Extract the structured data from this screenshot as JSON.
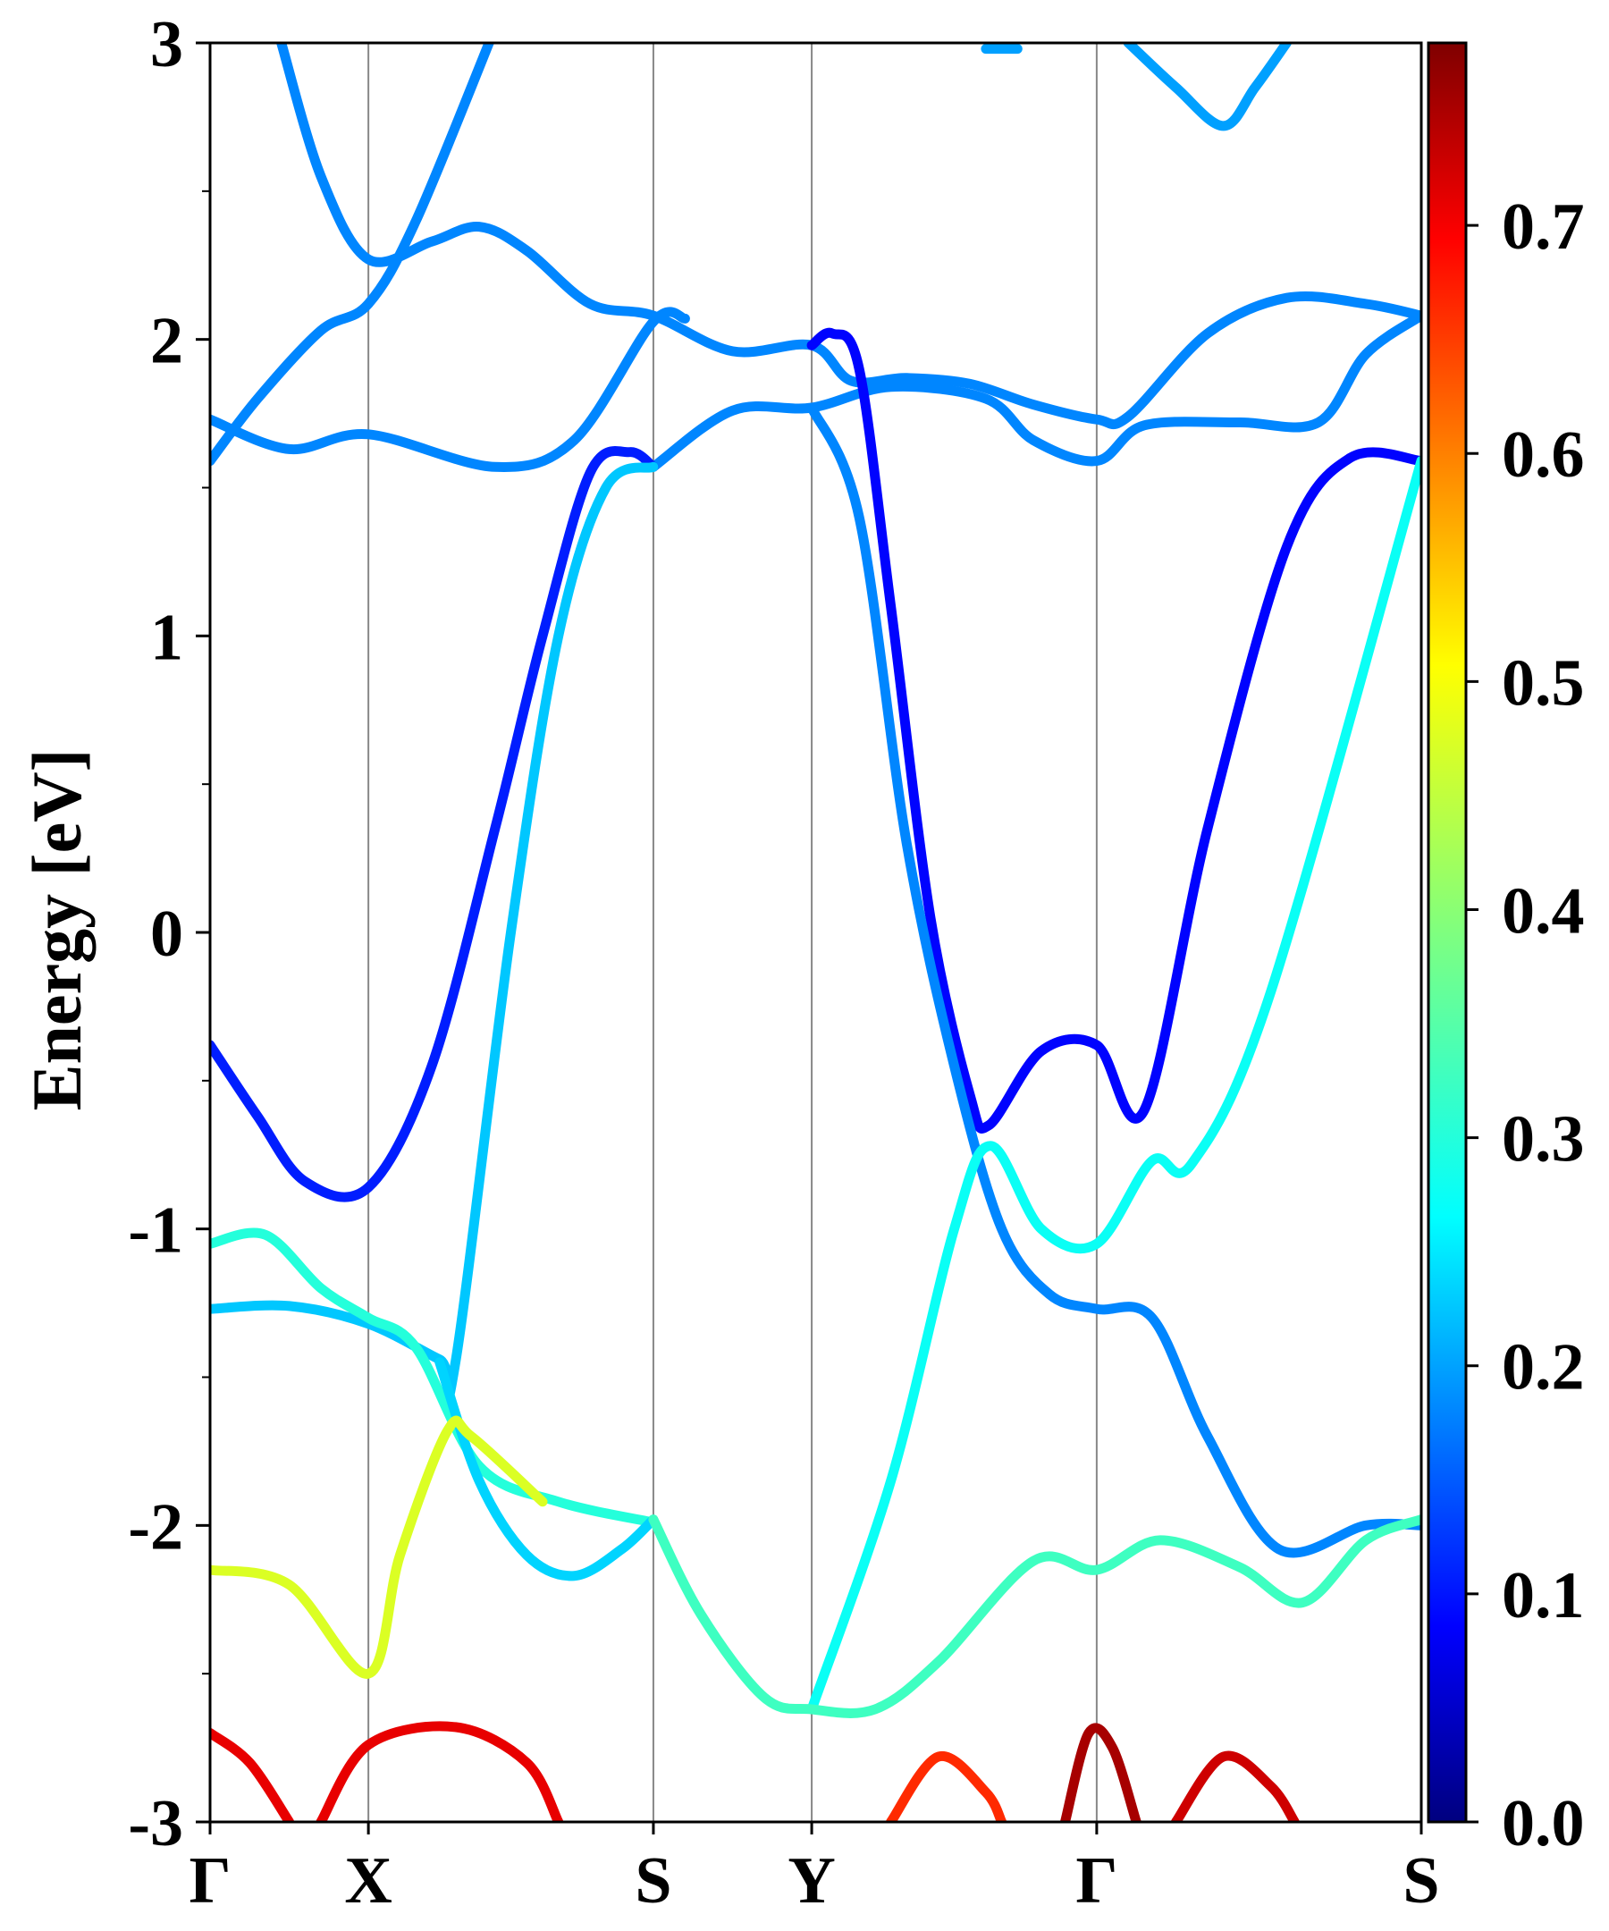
{
  "chart_data": {
    "type": "line",
    "ylabel": "Energy [eV]",
    "ylim": [
      -3,
      3
    ],
    "y_ticks": [
      "3",
      "2",
      "1",
      "0",
      "-1",
      "-2",
      "-3"
    ],
    "k_points": [
      {
        "label": "Γ",
        "x": 0.0
      },
      {
        "label": "X",
        "x": 1.0
      },
      {
        "label": "S",
        "x": 2.8
      },
      {
        "label": "Y",
        "x": 3.8
      },
      {
        "label": "Γ",
        "x": 5.6
      },
      {
        "label": "S",
        "x": 7.65
      }
    ],
    "xlim": [
      0,
      7.65
    ],
    "colorbar": {
      "colormap": "jet",
      "range": [
        0.0,
        0.78
      ],
      "tick_labels": [
        "0.0",
        "0.1",
        "0.2",
        "0.3",
        "0.4",
        "0.5",
        "0.6",
        "0.7"
      ]
    },
    "grid": "vertical lines at high-symmetry points",
    "series": [
      {
        "points": [
          [
            0.0,
            1.59
          ],
          [
            0.3,
            1.8
          ],
          [
            0.7,
            2.03
          ],
          [
            1.0,
            2.12
          ],
          [
            1.3,
            2.4
          ],
          [
            1.8,
            3.05
          ]
        ],
        "weight": 0.2
      },
      {
        "points": [
          [
            0.45,
            3.0
          ],
          [
            0.7,
            2.55
          ],
          [
            1.0,
            2.27
          ],
          [
            1.4,
            2.33
          ],
          [
            1.7,
            2.38
          ],
          [
            2.0,
            2.3
          ],
          [
            2.4,
            2.12
          ],
          [
            2.8,
            2.08
          ],
          [
            3.3,
            1.96
          ],
          [
            3.8,
            1.98
          ],
          [
            4.05,
            1.86
          ],
          [
            4.4,
            1.87
          ],
          [
            4.8,
            1.85
          ],
          [
            5.2,
            1.78
          ],
          [
            5.6,
            1.73
          ],
          [
            5.8,
            1.74
          ],
          [
            6.3,
            2.02
          ],
          [
            6.8,
            2.14
          ],
          [
            7.3,
            2.12
          ],
          [
            7.65,
            2.08
          ]
        ],
        "weight": 0.2
      },
      {
        "points": [
          [
            0.0,
            1.73
          ],
          [
            0.5,
            1.63
          ],
          [
            1.0,
            1.68
          ],
          [
            1.8,
            1.57
          ],
          [
            2.3,
            1.66
          ],
          [
            2.8,
            2.06
          ],
          [
            3.0,
            2.07
          ]
        ],
        "weight": 0.2
      },
      {
        "points": [
          [
            2.8,
            1.57
          ],
          [
            3.3,
            1.76
          ],
          [
            3.8,
            1.77
          ],
          [
            4.3,
            1.84
          ],
          [
            4.9,
            1.8
          ],
          [
            5.2,
            1.66
          ],
          [
            5.6,
            1.59
          ],
          [
            5.9,
            1.71
          ],
          [
            6.5,
            1.72
          ],
          [
            7.0,
            1.72
          ],
          [
            7.3,
            1.95
          ],
          [
            7.65,
            2.08
          ]
        ],
        "weight": 0.2
      },
      {
        "points": [
          [
            3.8,
            1.98
          ],
          [
            3.93,
            2.02
          ],
          [
            4.1,
            1.9
          ],
          [
            4.3,
            1.1
          ],
          [
            4.55,
            0.05
          ],
          [
            4.8,
            -0.55
          ],
          [
            4.92,
            -0.65
          ],
          [
            5.25,
            -0.4
          ],
          [
            5.6,
            -0.38
          ],
          [
            5.9,
            -0.6
          ],
          [
            6.3,
            0.35
          ],
          [
            6.8,
            1.3
          ],
          [
            7.2,
            1.6
          ],
          [
            7.65,
            1.59
          ]
        ],
        "weight": 0.1
      },
      {
        "points": [
          [
            0.0,
            -0.38
          ],
          [
            0.3,
            -0.62
          ],
          [
            0.6,
            -0.84
          ],
          [
            1.0,
            -0.86
          ],
          [
            1.4,
            -0.45
          ],
          [
            1.8,
            0.35
          ],
          [
            2.1,
            1.0
          ],
          [
            2.4,
            1.55
          ],
          [
            2.65,
            1.62
          ],
          [
            2.8,
            1.57
          ]
        ],
        "weight": 0.12
      },
      {
        "points": [
          [
            3.8,
            1.77
          ],
          [
            4.1,
            1.4
          ],
          [
            4.4,
            0.3
          ],
          [
            4.7,
            -0.45
          ],
          [
            5.0,
            -1.0
          ],
          [
            5.3,
            -1.22
          ],
          [
            5.6,
            -1.27
          ],
          [
            5.95,
            -1.3
          ],
          [
            6.3,
            -1.7
          ],
          [
            6.75,
            -2.08
          ],
          [
            7.3,
            -2.0
          ],
          [
            7.65,
            -2.0
          ]
        ],
        "weight": 0.2
      },
      {
        "points": [
          [
            0.0,
            -1.27
          ],
          [
            0.5,
            -1.26
          ],
          [
            1.0,
            -1.32
          ],
          [
            1.45,
            -1.44
          ],
          [
            1.55,
            -1.45
          ],
          [
            1.9,
            0.0
          ],
          [
            2.2,
            1.0
          ],
          [
            2.5,
            1.5
          ],
          [
            2.8,
            1.57
          ]
        ],
        "weight": 0.25
      },
      {
        "points": [
          [
            3.8,
            -2.62
          ],
          [
            4.3,
            -1.85
          ],
          [
            4.7,
            -1.0
          ],
          [
            4.93,
            -0.72
          ],
          [
            5.25,
            -1.0
          ],
          [
            5.6,
            -1.05
          ],
          [
            5.95,
            -0.77
          ],
          [
            6.2,
            -0.78
          ],
          [
            6.7,
            -0.2
          ],
          [
            7.65,
            1.59
          ]
        ],
        "weight": 0.3
      },
      {
        "points": [
          [
            0.0,
            -1.05
          ],
          [
            0.35,
            -1.02
          ],
          [
            0.7,
            -1.2
          ],
          [
            1.0,
            -1.3
          ],
          [
            1.3,
            -1.4
          ],
          [
            1.7,
            -1.8
          ],
          [
            2.2,
            -1.92
          ],
          [
            2.8,
            -1.99
          ]
        ],
        "weight": 0.32
      },
      {
        "points": [
          [
            1.45,
            -1.45
          ],
          [
            1.7,
            -1.85
          ],
          [
            2.0,
            -2.1
          ],
          [
            2.3,
            -2.17
          ],
          [
            2.6,
            -2.08
          ],
          [
            2.8,
            -1.98
          ]
        ],
        "weight": 0.26
      },
      {
        "points": [
          [
            2.8,
            -1.98
          ],
          [
            3.1,
            -2.3
          ],
          [
            3.5,
            -2.58
          ],
          [
            3.8,
            -2.62
          ],
          [
            4.2,
            -2.62
          ],
          [
            4.6,
            -2.46
          ],
          [
            5.2,
            -2.12
          ],
          [
            5.6,
            -2.15
          ],
          [
            6.0,
            -2.05
          ],
          [
            6.5,
            -2.14
          ],
          [
            6.9,
            -2.26
          ],
          [
            7.3,
            -2.05
          ],
          [
            7.65,
            -1.98
          ]
        ],
        "weight": 0.34
      },
      {
        "points": [
          [
            0.0,
            -2.15
          ],
          [
            0.5,
            -2.2
          ],
          [
            1.0,
            -2.5
          ],
          [
            1.2,
            -2.1
          ],
          [
            1.5,
            -1.68
          ],
          [
            1.65,
            -1.7
          ],
          [
            2.1,
            -1.92
          ]
        ],
        "weight": 0.46
      },
      {
        "points": [
          [
            0.0,
            -2.7
          ],
          [
            0.25,
            -2.8
          ],
          [
            0.5,
            -3.0
          ]
        ],
        "weight": 0.7
      },
      {
        "points": [
          [
            0.7,
            -3.0
          ],
          [
            1.0,
            -2.74
          ],
          [
            1.55,
            -2.68
          ],
          [
            2.0,
            -2.8
          ],
          [
            2.2,
            -3.0
          ]
        ],
        "weight": 0.7
      },
      {
        "points": [
          [
            4.3,
            -3.0
          ],
          [
            4.6,
            -2.78
          ],
          [
            4.9,
            -2.9
          ],
          [
            5.0,
            -3.0
          ]
        ],
        "weight": 0.65
      },
      {
        "points": [
          [
            5.4,
            -3.0
          ],
          [
            5.55,
            -2.7
          ],
          [
            5.7,
            -2.75
          ],
          [
            5.85,
            -3.0
          ]
        ],
        "weight": 0.75
      },
      {
        "points": [
          [
            6.1,
            -3.0
          ],
          [
            6.4,
            -2.78
          ],
          [
            6.7,
            -2.88
          ],
          [
            6.85,
            -3.0
          ]
        ],
        "weight": 0.72
      },
      {
        "points": [
          [
            5.8,
            3.0
          ],
          [
            6.1,
            2.85
          ],
          [
            6.4,
            2.72
          ],
          [
            6.6,
            2.85
          ],
          [
            6.8,
            3.0
          ]
        ],
        "weight": 0.22
      },
      {
        "points": [
          [
            4.9,
            2.98
          ],
          [
            5.1,
            2.98
          ]
        ],
        "weight": 0.22
      }
    ]
  }
}
